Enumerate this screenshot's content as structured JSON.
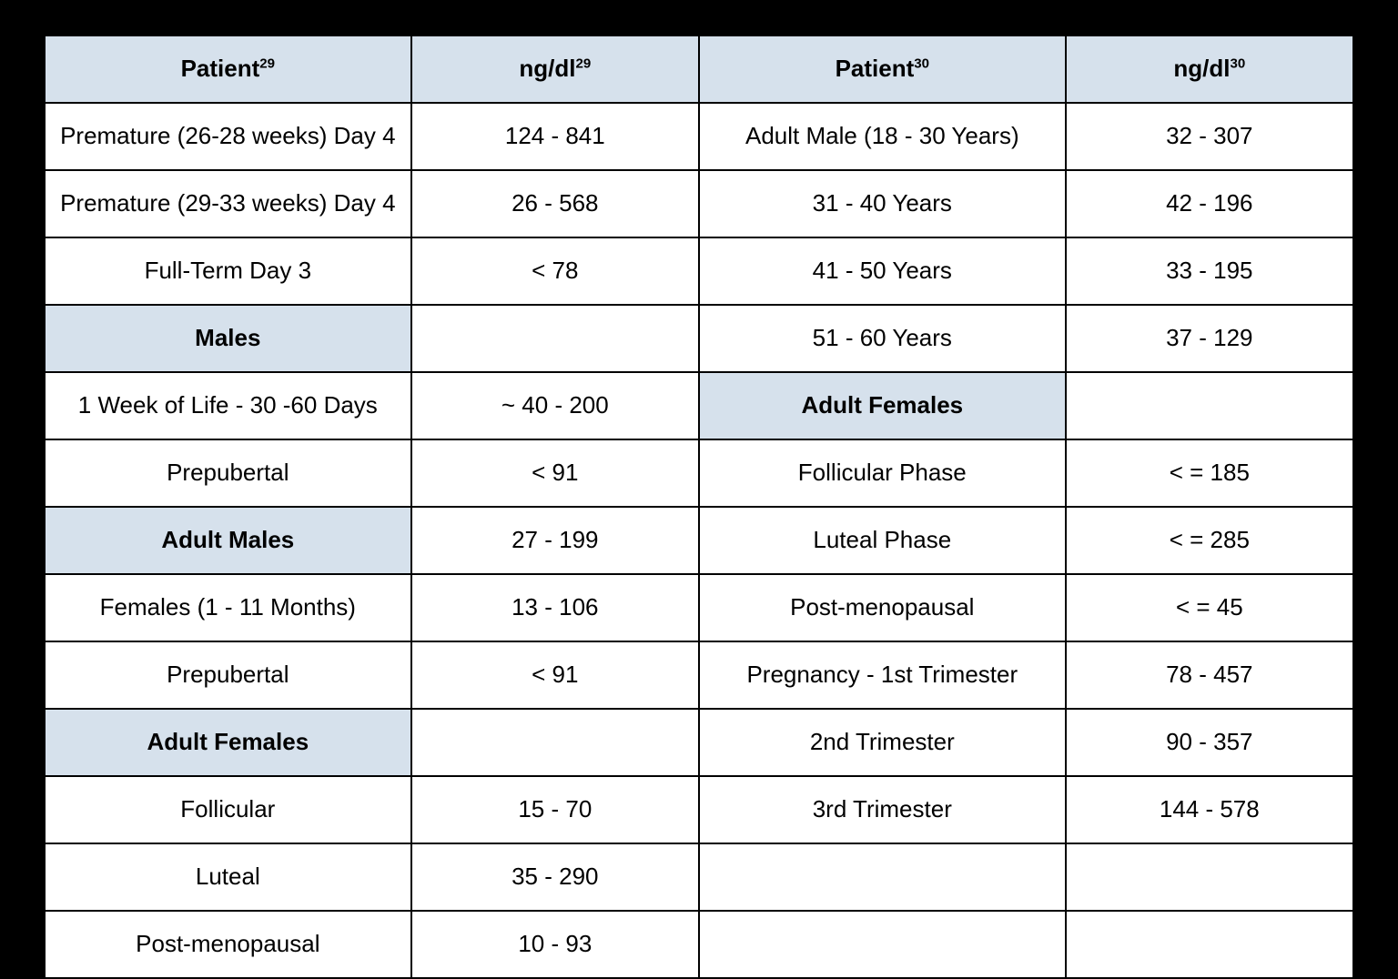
{
  "table": {
    "background_color": "#000000",
    "cell_background": "#ffffff",
    "header_background": "#d6e1ec",
    "border_color": "#000000",
    "font_size": 26,
    "headers": {
      "h1_text": "Patient",
      "h1_sup": "29",
      "h2_text": "ng/dl",
      "h2_sup": "29",
      "h3_text": "Patient",
      "h3_sup": "30",
      "h4_text": "ng/dl",
      "h4_sup": "30"
    },
    "rows": [
      {
        "c1": {
          "text": "Premature (26-28 weeks) Day 4"
        },
        "c2": {
          "text": "124 - 841"
        },
        "c3": {
          "text": "Adult Male (18 - 30 Years)"
        },
        "c4": {
          "text": "32 - 307"
        }
      },
      {
        "c1": {
          "text": "Premature (29-33 weeks) Day 4"
        },
        "c2": {
          "text": "26 - 568"
        },
        "c3": {
          "text": "31 - 40 Years"
        },
        "c4": {
          "text": "42 - 196"
        }
      },
      {
        "c1": {
          "text": "Full-Term Day 3"
        },
        "c2": {
          "text": "< 78"
        },
        "c3": {
          "text": "41 - 50 Years"
        },
        "c4": {
          "text": "33 - 195"
        }
      },
      {
        "c1": {
          "text": "Males",
          "section": true
        },
        "c2": {
          "text": ""
        },
        "c3": {
          "text": "51 - 60 Years"
        },
        "c4": {
          "text": "37 - 129"
        }
      },
      {
        "c1": {
          "text": "1 Week of Life - 30 -60 Days"
        },
        "c2": {
          "text": "~ 40 - 200"
        },
        "c3": {
          "text": "Adult Females",
          "section": true
        },
        "c4": {
          "text": ""
        }
      },
      {
        "c1": {
          "text": "Prepubertal"
        },
        "c2": {
          "text": "< 91"
        },
        "c3": {
          "text": "Follicular Phase"
        },
        "c4": {
          "text": "< = 185"
        }
      },
      {
        "c1": {
          "text": "Adult Males",
          "section": true
        },
        "c2": {
          "text": "27 - 199"
        },
        "c3": {
          "text": "Luteal Phase"
        },
        "c4": {
          "text": "< = 285"
        }
      },
      {
        "c1": {
          "text": "Females (1 - 11 Months)"
        },
        "c2": {
          "text": "13 - 106"
        },
        "c3": {
          "text": "Post-menopausal"
        },
        "c4": {
          "text": "< = 45"
        }
      },
      {
        "c1": {
          "text": "Prepubertal"
        },
        "c2": {
          "text": "< 91"
        },
        "c3": {
          "text": "Pregnancy - 1st Trimester"
        },
        "c4": {
          "text": "78 - 457"
        }
      },
      {
        "c1": {
          "text": "Adult Females",
          "section": true
        },
        "c2": {
          "text": ""
        },
        "c3": {
          "text": "2nd Trimester"
        },
        "c4": {
          "text": "90 - 357"
        }
      },
      {
        "c1": {
          "text": "Follicular"
        },
        "c2": {
          "text": "15 - 70"
        },
        "c3": {
          "text": "3rd Trimester"
        },
        "c4": {
          "text": "144 - 578"
        }
      },
      {
        "c1": {
          "text": "Luteal"
        },
        "c2": {
          "text": "35 - 290"
        },
        "c3": {
          "text": ""
        },
        "c4": {
          "text": ""
        }
      },
      {
        "c1": {
          "text": "Post-menopausal"
        },
        "c2": {
          "text": "10 - 93"
        },
        "c3": {
          "text": ""
        },
        "c4": {
          "text": ""
        }
      }
    ]
  }
}
